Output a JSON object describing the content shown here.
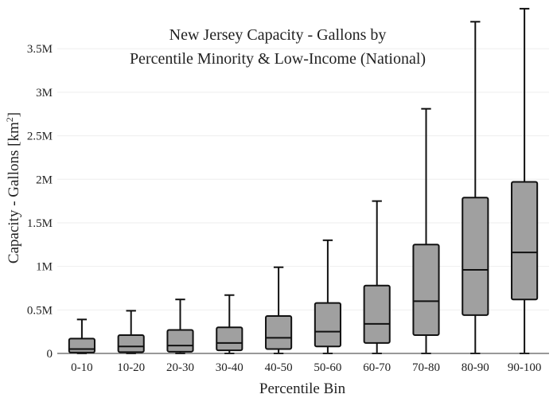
{
  "chart_data": {
    "type": "box",
    "title_lines": [
      "New Jersey Capacity - Gallons by",
      "Percentile Minority & Low-Income (National)"
    ],
    "xlabel": "Percentile Bin",
    "ylabel_main": "Capacity - Gallons ",
    "ylabel_unit_open": "[km",
    "ylabel_unit_sup": "2",
    "ylabel_unit_close": "]",
    "ylim": [
      0,
      3.95
    ],
    "y_unit": "million gallons",
    "y_ticks": [
      {
        "value": 0,
        "label": "0"
      },
      {
        "value": 0.5,
        "label": "0.5M"
      },
      {
        "value": 1,
        "label": "1M"
      },
      {
        "value": 1.5,
        "label": "1.5M"
      },
      {
        "value": 2,
        "label": "2M"
      },
      {
        "value": 2.5,
        "label": "2.5M"
      },
      {
        "value": 3,
        "label": "3M"
      },
      {
        "value": 3.5,
        "label": "3.5M"
      }
    ],
    "grid": true,
    "colors": {
      "box_fill": "#a0a0a0",
      "box_stroke": "#111111",
      "grid": "#eeeeee",
      "axis": "#333333"
    },
    "categories": [
      "0-10",
      "10-20",
      "20-30",
      "30-40",
      "40-50",
      "50-60",
      "60-70",
      "70-80",
      "80-90",
      "90-100"
    ],
    "boxes": [
      {
        "min": 0,
        "q1": 0.01,
        "median": 0.05,
        "q3": 0.17,
        "max": 0.39
      },
      {
        "min": 0,
        "q1": 0.015,
        "median": 0.08,
        "q3": 0.21,
        "max": 0.49
      },
      {
        "min": 0,
        "q1": 0.02,
        "median": 0.09,
        "q3": 0.27,
        "max": 0.62
      },
      {
        "min": 0,
        "q1": 0.035,
        "median": 0.12,
        "q3": 0.3,
        "max": 0.67
      },
      {
        "min": 0,
        "q1": 0.05,
        "median": 0.18,
        "q3": 0.43,
        "max": 0.99
      },
      {
        "min": 0,
        "q1": 0.08,
        "median": 0.25,
        "q3": 0.58,
        "max": 1.3
      },
      {
        "min": 0,
        "q1": 0.12,
        "median": 0.34,
        "q3": 0.78,
        "max": 1.75
      },
      {
        "min": 0,
        "q1": 0.21,
        "median": 0.6,
        "q3": 1.25,
        "max": 2.81
      },
      {
        "min": 0,
        "q1": 0.44,
        "median": 0.96,
        "q3": 1.79,
        "max": 3.81
      },
      {
        "min": 0,
        "q1": 0.62,
        "median": 1.16,
        "q3": 1.97,
        "max": 3.96
      }
    ]
  }
}
